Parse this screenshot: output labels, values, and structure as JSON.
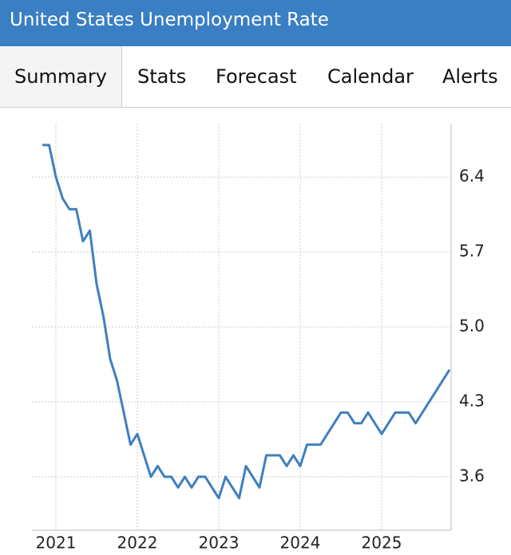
{
  "header": {
    "title": "United States Unemployment Rate"
  },
  "tabs": [
    "Summary",
    "Stats",
    "Forecast",
    "Calendar",
    "Alerts"
  ],
  "chart_data": {
    "type": "line",
    "color": "#3f7fbf",
    "grid": true,
    "categories": [
      null,
      null,
      "2021",
      null,
      null,
      null,
      null,
      null,
      null,
      null,
      null,
      null,
      null,
      null,
      "2022",
      null,
      null,
      null,
      null,
      null,
      null,
      null,
      null,
      null,
      null,
      null,
      "2023",
      null,
      null,
      null,
      null,
      null,
      null,
      null,
      null,
      null,
      null,
      null,
      "2024",
      null,
      null,
      null,
      null,
      null,
      null,
      null,
      null,
      null,
      null,
      null,
      "2025",
      null,
      null,
      null,
      null,
      null,
      null,
      null,
      null,
      null,
      null
    ],
    "values": [
      6.7,
      6.7,
      6.4,
      6.2,
      6.1,
      6.1,
      5.8,
      5.9,
      5.4,
      5.1,
      4.7,
      4.5,
      4.2,
      3.9,
      4.0,
      3.8,
      3.6,
      3.7,
      3.6,
      3.6,
      3.5,
      3.6,
      3.5,
      3.6,
      3.6,
      3.5,
      3.4,
      3.6,
      3.5,
      3.4,
      3.7,
      3.6,
      3.5,
      3.8,
      3.8,
      3.8,
      3.7,
      3.8,
      3.7,
      3.9,
      3.9,
      3.9,
      4.0,
      4.1,
      4.2,
      4.2,
      4.1,
      4.1,
      4.2,
      4.1,
      4.0,
      4.1,
      4.2,
      4.2,
      4.2,
      4.1,
      4.2,
      4.3,
      4.4,
      4.5,
      4.6
    ],
    "ylim": [
      3.1,
      6.9
    ],
    "yticks": [
      3.6,
      4.3,
      {
        "value": 5.0,
        "label": "5.0"
      },
      5.7,
      6.4
    ]
  }
}
